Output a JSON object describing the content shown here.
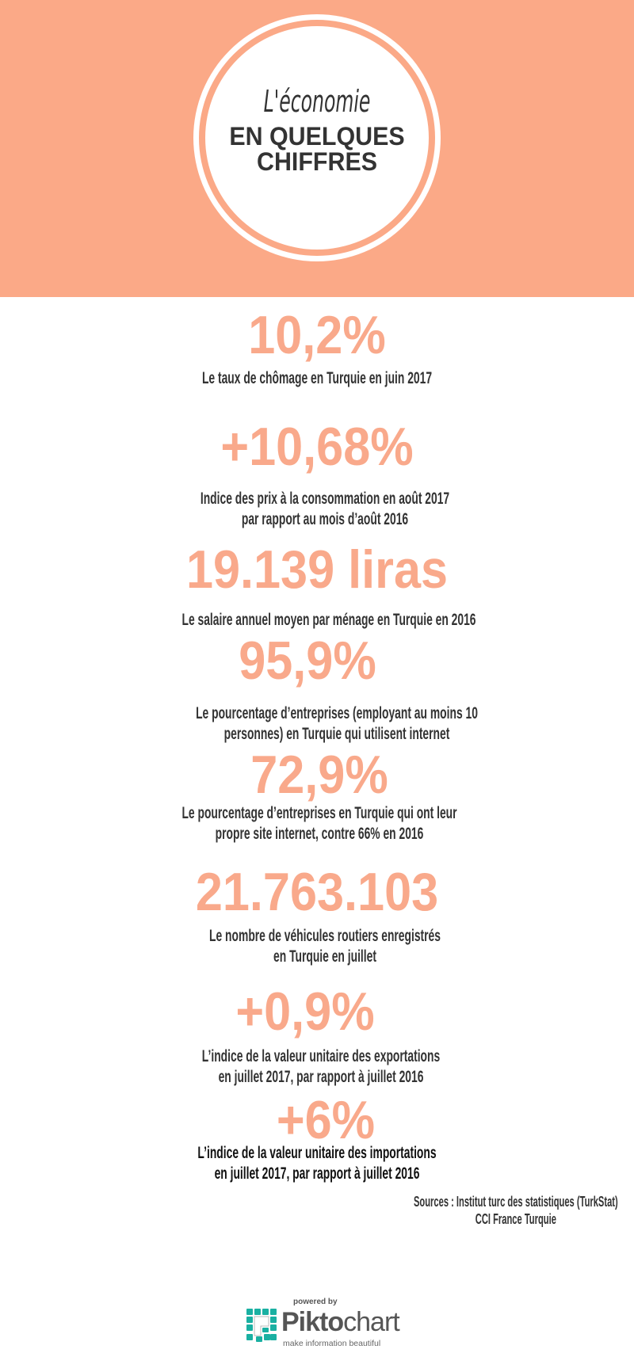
{
  "header": {
    "title_script": "L'économie",
    "title_line1": "EN QUELQUES",
    "title_line2": "CHIFFRES",
    "background_color": "#FBA987"
  },
  "stats": [
    {
      "value": "10,2%",
      "caption": [
        "Le taux de chômage en Turquie en juin 2017"
      ]
    },
    {
      "value": "+10,68%",
      "caption": [
        "Indice des prix à la consommation en août 2017",
        "par rapport au mois d’août 2016"
      ]
    },
    {
      "value": "19.139 liras",
      "caption": [
        "Le salaire annuel moyen par ménage en Turquie en 2016"
      ]
    },
    {
      "value": "95,9%",
      "caption": [
        "Le pourcentage d’entreprises (employant au moins 10",
        "personnes) en Turquie qui utilisent internet"
      ]
    },
    {
      "value": "72,9%",
      "caption": [
        "Le pourcentage d’entreprises en Turquie qui ont leur",
        "propre site internet, contre 66% en 2016"
      ]
    },
    {
      "value": "21.763.103",
      "caption": [
        "Le nombre de véhicules routiers enregistrés",
        "en Turquie en juillet"
      ]
    },
    {
      "value": "+0,9%",
      "caption": [
        "L’indice de la valeur unitaire des exportations",
        "en juillet 2017, par rapport à juillet 2016"
      ]
    },
    {
      "value": "+6%",
      "caption": [
        "L’indice de la valeur unitaire des importations",
        "en juillet 2017, par rapport à juillet 2016"
      ]
    }
  ],
  "sources": [
    "Sources : Institut turc des statistiques (TurkStat)",
    "CCI France Turquie"
  ],
  "footer": {
    "powered_by": "powered by",
    "brand_bold": "Pikto",
    "brand_light": "chart",
    "tagline": "make information beautiful",
    "brand_color": "#1AB0A2"
  },
  "accent_color": "#F9A98B"
}
